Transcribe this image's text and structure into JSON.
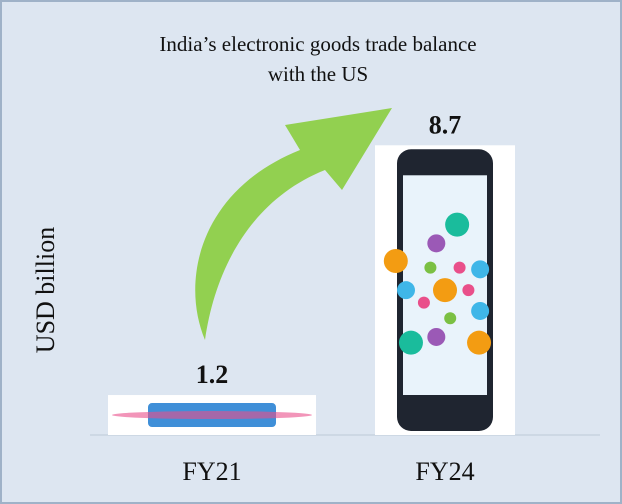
{
  "chart_data": {
    "type": "bar",
    "title": [
      "India’s electronic goods trade balance",
      "with the US"
    ],
    "y_label": "USD billion",
    "categories": [
      "FY21",
      "FY24"
    ],
    "values": [
      1.2,
      8.7
    ],
    "colors": [
      "#3f8fd8",
      "#1f2530"
    ],
    "ylim": [
      0,
      10
    ]
  }
}
